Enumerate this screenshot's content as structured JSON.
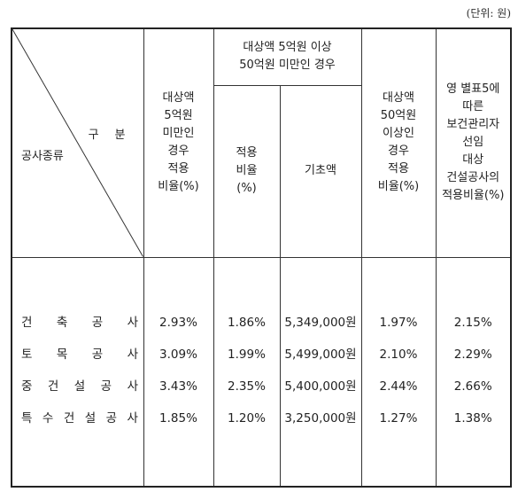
{
  "unit_label": "(단위: 원)",
  "header": {
    "gubun": [
      "구",
      "분"
    ],
    "gongsa_type": "공사종류",
    "col_under5": [
      "대상액",
      "5억원",
      "미만인",
      "경우",
      "적용",
      "비율(%)"
    ],
    "group_5to50": [
      "대상액 5억원 이상",
      "50억원 미만인 경우"
    ],
    "col_rate": [
      "적용",
      "비율",
      "(%)"
    ],
    "col_base": "기초액",
    "col_over50": [
      "대상액",
      "50억원",
      "이상인",
      "경우",
      "적용",
      "비율(%)"
    ],
    "col_health": [
      "영 별표5에",
      "따른",
      "보건관리자",
      "선임",
      "대상",
      "건설공사의",
      "적용비율(%)"
    ]
  },
  "rows": [
    {
      "name_chars": [
        "건",
        "축",
        "공",
        "사"
      ],
      "under5": "2.93%",
      "rate": "1.86%",
      "base": "5,349,000원",
      "over50": "1.97%",
      "health": "2.15%"
    },
    {
      "name_chars": [
        "토",
        "목",
        "공",
        "사"
      ],
      "under5": "3.09%",
      "rate": "1.99%",
      "base": "5,499,000원",
      "over50": "2.10%",
      "health": "2.29%"
    },
    {
      "name_chars": [
        "중",
        "건",
        "설",
        "공",
        "사"
      ],
      "under5": "3.43%",
      "rate": "2.35%",
      "base": "5,400,000원",
      "over50": "2.44%",
      "health": "2.66%"
    },
    {
      "name_chars": [
        "특",
        "수",
        "건",
        "설",
        "공",
        "사"
      ],
      "under5": "1.85%",
      "rate": "1.20%",
      "base": "3,250,000원",
      "over50": "1.27%",
      "health": "1.38%"
    }
  ]
}
